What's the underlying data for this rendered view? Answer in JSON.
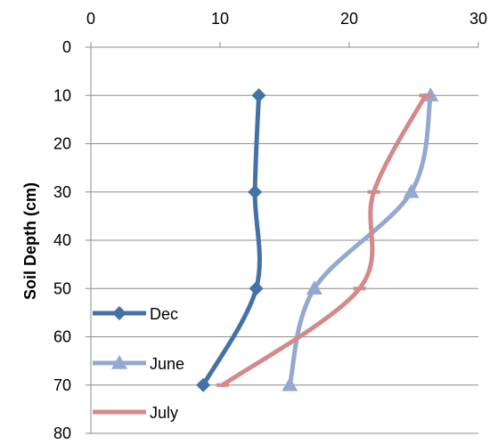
{
  "chart_data": {
    "type": "line",
    "title": "",
    "xlabel": "",
    "ylabel": "Soil Depth (cm)",
    "xlim": [
      0,
      30
    ],
    "ylim": [
      0,
      80
    ],
    "y_reversed": true,
    "x_axis_position": "top",
    "x_ticks": [
      "0",
      "10",
      "20",
      "30"
    ],
    "y_ticks": [
      "0",
      "10",
      "20",
      "30",
      "40",
      "50",
      "60",
      "70",
      "80"
    ],
    "grid": "horizontal",
    "legend_position": "bottom-left",
    "series": [
      {
        "name": "Dec",
        "color": "#4472A8",
        "marker": "diamond",
        "x": [
          13.0,
          12.7,
          12.8,
          8.7
        ],
        "y": [
          10,
          30,
          50,
          70
        ]
      },
      {
        "name": "June",
        "color": "#93A9CF",
        "marker": "triangle",
        "x": [
          26.3,
          24.8,
          17.3,
          15.4
        ],
        "y": [
          10,
          30,
          50,
          70
        ]
      },
      {
        "name": "July",
        "color": "#D48A8A",
        "marker": "dash",
        "x": [
          25.9,
          21.9,
          20.8,
          10.2
        ],
        "y": [
          10,
          30,
          50,
          70
        ]
      }
    ]
  }
}
